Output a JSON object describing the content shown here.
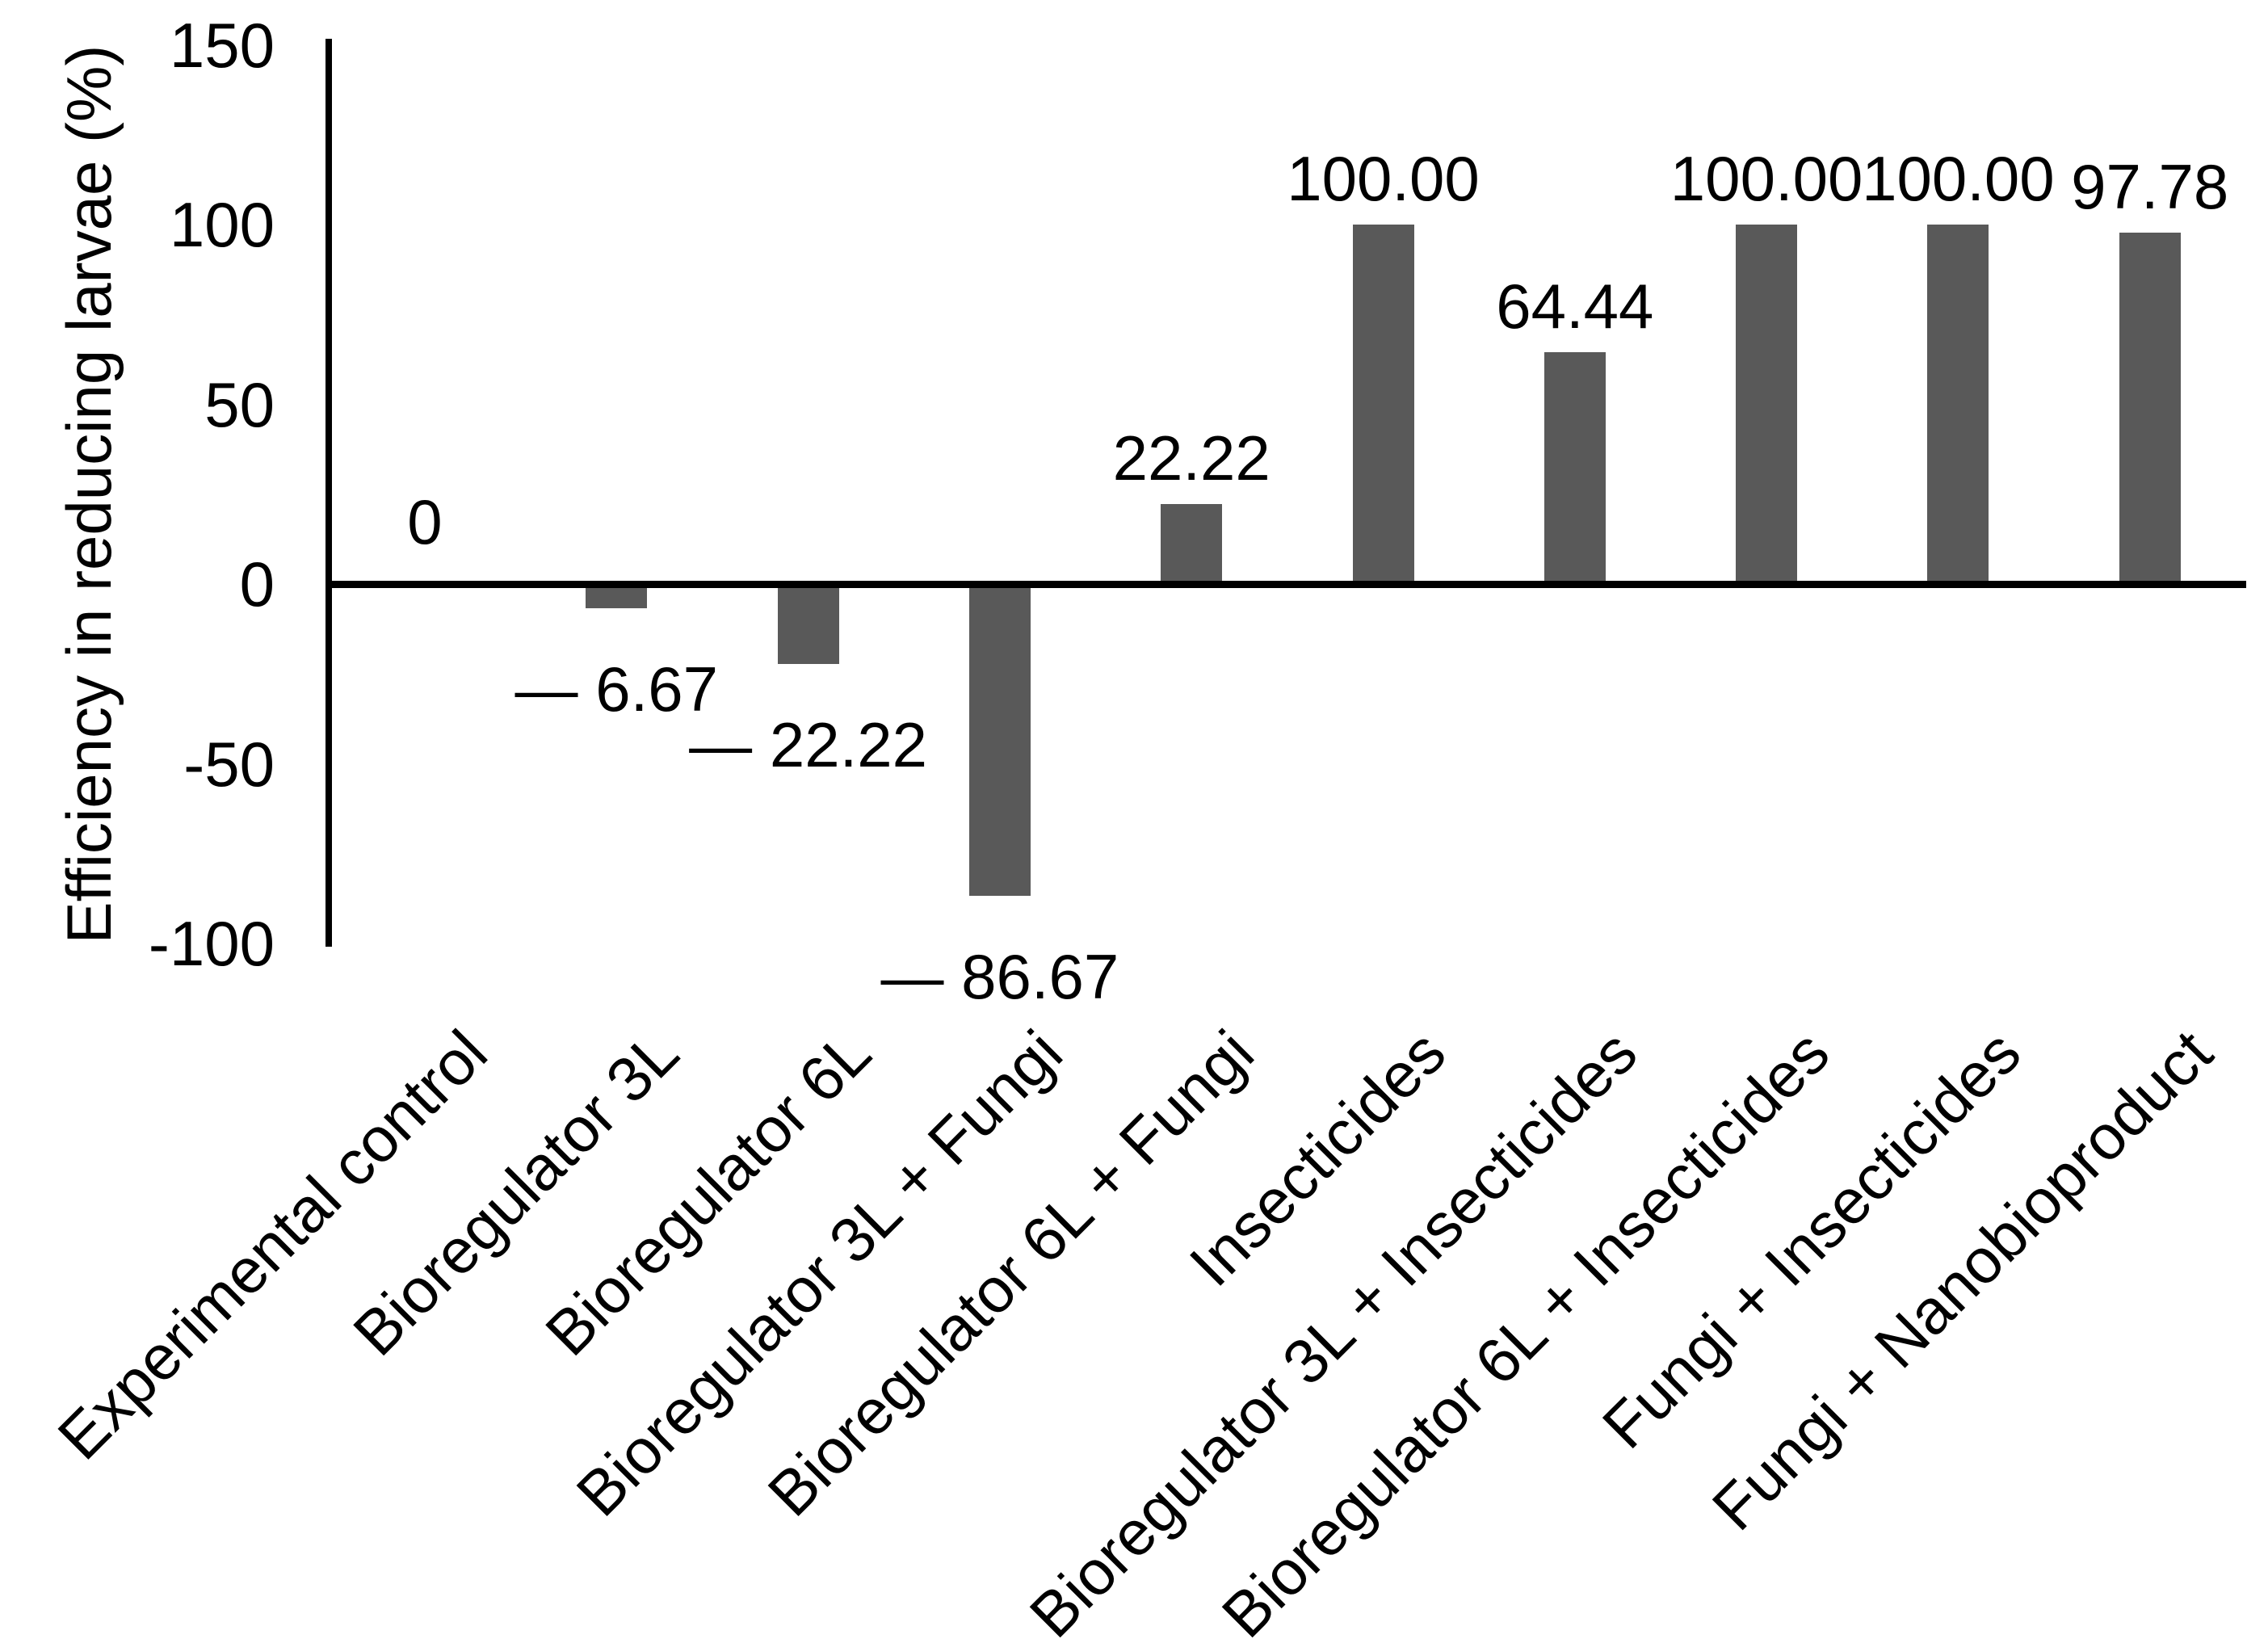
{
  "figure": {
    "background_color": "#ffffff",
    "axis_color": "#000000",
    "text_color": "#000000"
  },
  "chart_data": {
    "type": "bar",
    "title": "",
    "ylabel": "Efficiency in reducing larvae (%)",
    "xlabel": "",
    "ylim": [
      -100,
      150
    ],
    "ytick_interval": 50,
    "yticks": [
      150,
      100,
      50,
      0,
      -50,
      -100
    ],
    "ytick_labels": [
      "150",
      "100",
      "50",
      "0",
      "-50",
      "-100"
    ],
    "grid": "off",
    "legend": "none",
    "bar_color": "#595959",
    "categories": [
      "Experimental control",
      "Bioregulator 3L",
      "Bioregulator 6L",
      "Bioregulator 3L + Fungi",
      "Bioregulator 6L + Fungi",
      "Insecticides",
      "Bioregulator 3L + Insecticides",
      "Bioregulator 6L + Insecticides",
      "Fungi + Insecticides",
      "Fungi + Nanobioproduct"
    ],
    "values": [
      0,
      -6.67,
      -22.22,
      -86.67,
      22.22,
      100.0,
      64.44,
      100.0,
      100.0,
      97.78
    ],
    "data_labels": [
      "0",
      "— 6.67",
      "— 22.22",
      "— 86.67",
      "22.22",
      "100.00",
      "64.44",
      "100.00",
      "100.00",
      "97.78"
    ]
  }
}
